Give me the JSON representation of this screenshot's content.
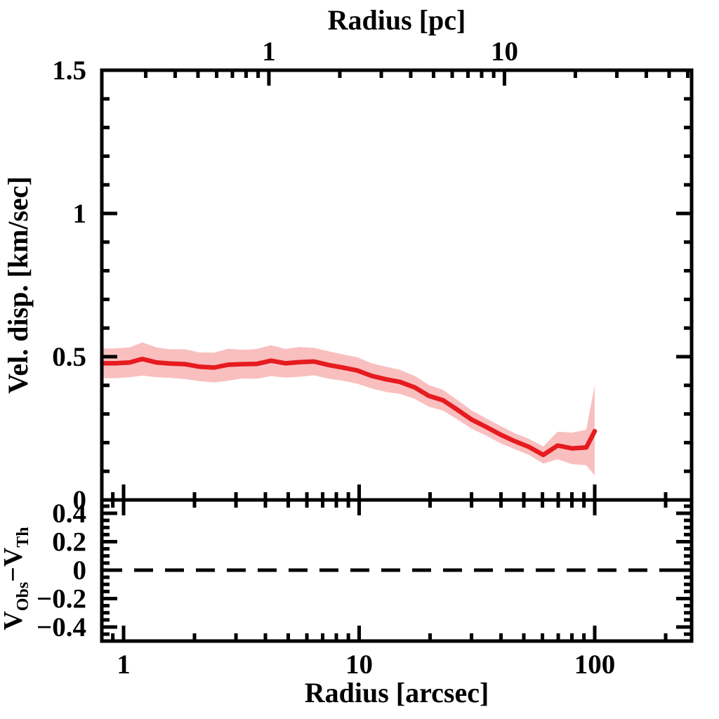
{
  "figure": {
    "background": "#ffffff",
    "axis_color": "#000000",
    "line_color": "#e61b20",
    "band_color": "#f9bfbf"
  },
  "chart_data": {
    "type": "line",
    "title": "",
    "top_xlabel": "Radius [pc]",
    "xlabel": "Radius [arcsec]",
    "ylabel": "Vel. disp. [km/sec]",
    "residual_ylabel_parts": {
      "v1": "V",
      "sub1": "Obs",
      "v2": "−V",
      "sub2": "Th"
    },
    "x_scale": "log",
    "xlim_arcsec": [
      0.81,
      258
    ],
    "pc_per_arcsec": 0.2416,
    "main_ylim": [
      0,
      1.5
    ],
    "residual_ylim": [
      -0.5,
      0.494
    ],
    "x_major_ticks": [
      1,
      10,
      100
    ],
    "x_tick_labels": [
      "1",
      "10",
      "100"
    ],
    "top_major_ticks_pc": [
      1,
      10
    ],
    "top_tick_labels": [
      "1",
      "10"
    ],
    "y_major_ticks": [
      0,
      0.5,
      1,
      1.5
    ],
    "y_tick_labels": [
      "0",
      "0.5",
      "1",
      "1.5"
    ],
    "y_minor_step": 0.1,
    "residual_major_ticks": [
      -0.4,
      -0.2,
      0,
      0.2,
      0.4
    ],
    "residual_tick_labels": [
      "−0.4",
      "−0.2",
      "0",
      "0.2",
      "0.4"
    ],
    "residual_minor_step": 0.05,
    "residual_reference": 0,
    "series": [
      {
        "name": "velocity-dispersion",
        "x": [
          0.8,
          0.92,
          1.06,
          1.2,
          1.38,
          1.58,
          1.82,
          2.1,
          2.42,
          2.78,
          3.2,
          3.68,
          4.23,
          4.87,
          5.6,
          6.44,
          7.41,
          8.52,
          9.8,
          11.3,
          13.0,
          14.9,
          17.2,
          19.8,
          22.7,
          26.1,
          30.1,
          34.6,
          39.8,
          45.8,
          52.6,
          60.5,
          69.6,
          80.1,
          92.1,
          100.0
        ],
        "y": [
          0.477,
          0.477,
          0.48,
          0.492,
          0.48,
          0.476,
          0.474,
          0.465,
          0.462,
          0.472,
          0.474,
          0.475,
          0.486,
          0.477,
          0.481,
          0.483,
          0.471,
          0.462,
          0.452,
          0.433,
          0.421,
          0.412,
          0.393,
          0.363,
          0.348,
          0.315,
          0.28,
          0.255,
          0.228,
          0.205,
          0.185,
          0.157,
          0.19,
          0.18,
          0.183,
          0.24
        ],
        "band_low": [
          0.425,
          0.425,
          0.428,
          0.434,
          0.428,
          0.426,
          0.422,
          0.415,
          0.41,
          0.416,
          0.424,
          0.423,
          0.432,
          0.427,
          0.43,
          0.435,
          0.423,
          0.416,
          0.406,
          0.389,
          0.377,
          0.37,
          0.353,
          0.325,
          0.312,
          0.281,
          0.248,
          0.225,
          0.198,
          0.177,
          0.157,
          0.127,
          0.142,
          0.125,
          0.121,
          0.085
        ],
        "band_high": [
          0.529,
          0.529,
          0.532,
          0.55,
          0.532,
          0.526,
          0.526,
          0.515,
          0.514,
          0.528,
          0.524,
          0.527,
          0.54,
          0.527,
          0.534,
          0.531,
          0.519,
          0.508,
          0.498,
          0.477,
          0.465,
          0.454,
          0.433,
          0.401,
          0.384,
          0.349,
          0.312,
          0.285,
          0.258,
          0.233,
          0.213,
          0.187,
          0.238,
          0.235,
          0.245,
          0.4
        ]
      }
    ]
  }
}
